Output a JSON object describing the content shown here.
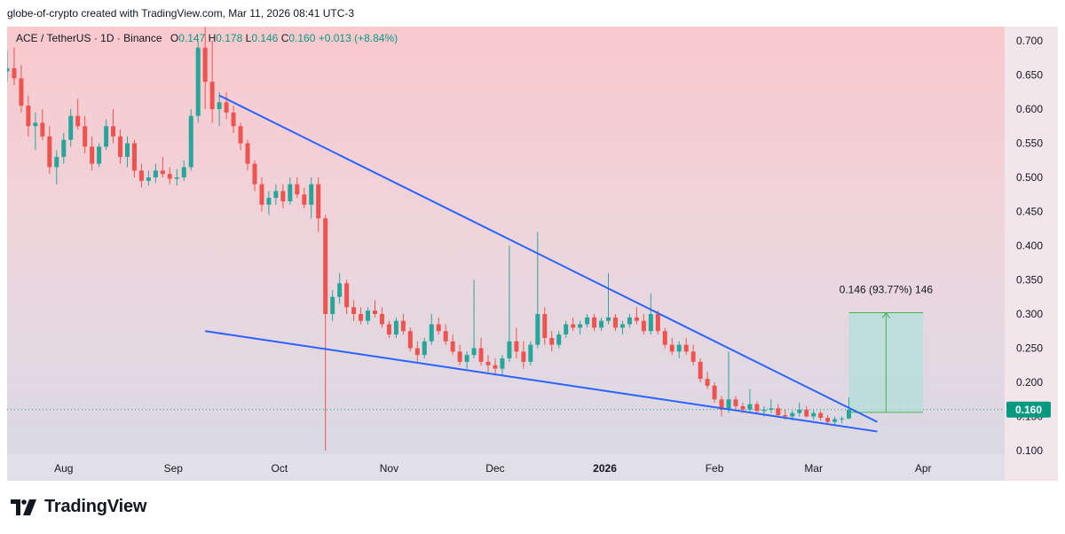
{
  "header": {
    "text": "globe-of-crypto created with TradingView.com, Mar 11, 2026 08:41 UTC-3"
  },
  "legend": {
    "symbol": "ACE / TetherUS · 1D · Binance",
    "o_key": "O",
    "o_val": "0.147",
    "h_key": "H",
    "h_val": "0.178",
    "l_key": "L",
    "l_val": "0.146",
    "c_key": "C",
    "c_val": "0.160",
    "change": "+0.013 (+8.84%)"
  },
  "brand": {
    "name": "TradingView",
    "logo_icon": "tradingview-logo-icon"
  },
  "colors": {
    "up": "#26a69a",
    "down": "#ef5350",
    "trendline": "#2962ff",
    "projection_fill": "#b2dfdb",
    "price_label": "#089981"
  },
  "chart_data": {
    "type": "candlestick",
    "y_axis": {
      "min": 0.1,
      "max": 0.7,
      "ticks": [
        0.7,
        0.65,
        0.6,
        0.55,
        0.5,
        0.45,
        0.4,
        0.35,
        0.3,
        0.25,
        0.2,
        0.15,
        0.1
      ],
      "tick_labels": [
        "0.700",
        "0.650",
        "0.600",
        "0.550",
        "0.500",
        "0.450",
        "0.400",
        "0.350",
        "0.300",
        "0.250",
        "0.200",
        "0.150",
        "0.100"
      ]
    },
    "x_axis": {
      "start": "2025-07-16",
      "end": "2026-04-15",
      "labels": [
        {
          "date": "2025-08-01",
          "label": "Aug"
        },
        {
          "date": "2025-09-01",
          "label": "Sep"
        },
        {
          "date": "2025-10-01",
          "label": "Oct"
        },
        {
          "date": "2025-11-01",
          "label": "Nov"
        },
        {
          "date": "2025-12-01",
          "label": "Dec"
        },
        {
          "date": "2026-01-01",
          "label": "2026"
        },
        {
          "date": "2026-02-01",
          "label": "Feb"
        },
        {
          "date": "2026-03-01",
          "label": "Mar"
        },
        {
          "date": "2026-04-01",
          "label": "Apr"
        }
      ]
    },
    "candles": [
      [
        "2025-07-16",
        0.655,
        0.685,
        0.64,
        0.66
      ],
      [
        "2025-07-18",
        0.66,
        0.69,
        0.635,
        0.645
      ],
      [
        "2025-07-20",
        0.645,
        0.665,
        0.595,
        0.605
      ],
      [
        "2025-07-22",
        0.605,
        0.62,
        0.56,
        0.575
      ],
      [
        "2025-07-24",
        0.575,
        0.595,
        0.54,
        0.58
      ],
      [
        "2025-07-26",
        0.58,
        0.6,
        0.555,
        0.56
      ],
      [
        "2025-07-28",
        0.56,
        0.575,
        0.505,
        0.515
      ],
      [
        "2025-07-30",
        0.515,
        0.54,
        0.49,
        0.53
      ],
      [
        "2025-08-01",
        0.53,
        0.565,
        0.52,
        0.555
      ],
      [
        "2025-08-03",
        0.555,
        0.6,
        0.545,
        0.59
      ],
      [
        "2025-08-05",
        0.59,
        0.615,
        0.57,
        0.575
      ],
      [
        "2025-08-07",
        0.575,
        0.59,
        0.535,
        0.545
      ],
      [
        "2025-08-09",
        0.545,
        0.56,
        0.51,
        0.52
      ],
      [
        "2025-08-11",
        0.52,
        0.55,
        0.515,
        0.545
      ],
      [
        "2025-08-13",
        0.545,
        0.585,
        0.54,
        0.575
      ],
      [
        "2025-08-15",
        0.575,
        0.6,
        0.55,
        0.56
      ],
      [
        "2025-08-17",
        0.56,
        0.57,
        0.52,
        0.53
      ],
      [
        "2025-08-19",
        0.53,
        0.56,
        0.515,
        0.55
      ],
      [
        "2025-08-21",
        0.55,
        0.555,
        0.5,
        0.51
      ],
      [
        "2025-08-23",
        0.51,
        0.52,
        0.485,
        0.495
      ],
      [
        "2025-08-25",
        0.495,
        0.51,
        0.488,
        0.5
      ],
      [
        "2025-08-27",
        0.5,
        0.52,
        0.492,
        0.51
      ],
      [
        "2025-08-29",
        0.51,
        0.53,
        0.5,
        0.505
      ],
      [
        "2025-08-31",
        0.505,
        0.515,
        0.49,
        0.498
      ],
      [
        "2025-09-02",
        0.498,
        0.512,
        0.488,
        0.5
      ],
      [
        "2025-09-04",
        0.5,
        0.525,
        0.495,
        0.515
      ],
      [
        "2025-09-06",
        0.515,
        0.6,
        0.51,
        0.59
      ],
      [
        "2025-09-08",
        0.59,
        0.7,
        0.58,
        0.69
      ],
      [
        "2025-09-10",
        0.69,
        0.72,
        0.6,
        0.64
      ],
      [
        "2025-09-12",
        0.64,
        0.7,
        0.58,
        0.6
      ],
      [
        "2025-09-14",
        0.6,
        0.625,
        0.575,
        0.61
      ],
      [
        "2025-09-16",
        0.61,
        0.625,
        0.585,
        0.595
      ],
      [
        "2025-09-18",
        0.595,
        0.605,
        0.565,
        0.575
      ],
      [
        "2025-09-20",
        0.575,
        0.58,
        0.54,
        0.55
      ],
      [
        "2025-09-22",
        0.55,
        0.555,
        0.51,
        0.52
      ],
      [
        "2025-09-24",
        0.52,
        0.525,
        0.48,
        0.49
      ],
      [
        "2025-09-26",
        0.49,
        0.5,
        0.45,
        0.46
      ],
      [
        "2025-09-28",
        0.46,
        0.48,
        0.445,
        0.47
      ],
      [
        "2025-09-30",
        0.47,
        0.49,
        0.46,
        0.48
      ],
      [
        "2025-10-02",
        0.48,
        0.49,
        0.455,
        0.465
      ],
      [
        "2025-10-04",
        0.465,
        0.5,
        0.46,
        0.49
      ],
      [
        "2025-10-06",
        0.49,
        0.5,
        0.47,
        0.475
      ],
      [
        "2025-10-08",
        0.475,
        0.485,
        0.455,
        0.46
      ],
      [
        "2025-10-10",
        0.46,
        0.5,
        0.44,
        0.49
      ],
      [
        "2025-10-12",
        0.49,
        0.5,
        0.42,
        0.44
      ],
      [
        "2025-10-14",
        0.44,
        0.445,
        0.1,
        0.3
      ],
      [
        "2025-10-16",
        0.3,
        0.335,
        0.29,
        0.325
      ],
      [
        "2025-10-18",
        0.325,
        0.36,
        0.315,
        0.345
      ],
      [
        "2025-10-20",
        0.345,
        0.35,
        0.3,
        0.31
      ],
      [
        "2025-10-22",
        0.31,
        0.32,
        0.29,
        0.3
      ],
      [
        "2025-10-24",
        0.3,
        0.31,
        0.285,
        0.29
      ],
      [
        "2025-10-26",
        0.29,
        0.31,
        0.285,
        0.305
      ],
      [
        "2025-10-28",
        0.305,
        0.32,
        0.295,
        0.3
      ],
      [
        "2025-10-30",
        0.3,
        0.31,
        0.28,
        0.285
      ],
      [
        "2025-11-01",
        0.285,
        0.29,
        0.265,
        0.27
      ],
      [
        "2025-11-03",
        0.27,
        0.295,
        0.265,
        0.29
      ],
      [
        "2025-11-05",
        0.29,
        0.3,
        0.27,
        0.275
      ],
      [
        "2025-11-07",
        0.275,
        0.28,
        0.245,
        0.25
      ],
      [
        "2025-11-09",
        0.25,
        0.26,
        0.23,
        0.24
      ],
      [
        "2025-11-11",
        0.24,
        0.265,
        0.235,
        0.26
      ],
      [
        "2025-11-13",
        0.26,
        0.3,
        0.255,
        0.285
      ],
      [
        "2025-11-15",
        0.285,
        0.295,
        0.27,
        0.275
      ],
      [
        "2025-11-17",
        0.275,
        0.285,
        0.255,
        0.26
      ],
      [
        "2025-11-19",
        0.26,
        0.27,
        0.24,
        0.245
      ],
      [
        "2025-11-21",
        0.245,
        0.255,
        0.225,
        0.23
      ],
      [
        "2025-11-23",
        0.23,
        0.245,
        0.22,
        0.24
      ],
      [
        "2025-11-25",
        0.24,
        0.35,
        0.235,
        0.25
      ],
      [
        "2025-11-27",
        0.25,
        0.265,
        0.225,
        0.23
      ],
      [
        "2025-11-29",
        0.23,
        0.24,
        0.215,
        0.225
      ],
      [
        "2025-12-01",
        0.225,
        0.235,
        0.21,
        0.22
      ],
      [
        "2025-12-03",
        0.22,
        0.24,
        0.21,
        0.235
      ],
      [
        "2025-12-05",
        0.235,
        0.4,
        0.23,
        0.26
      ],
      [
        "2025-12-07",
        0.26,
        0.28,
        0.235,
        0.245
      ],
      [
        "2025-12-09",
        0.245,
        0.26,
        0.22,
        0.23
      ],
      [
        "2025-12-11",
        0.23,
        0.26,
        0.225,
        0.255
      ],
      [
        "2025-12-13",
        0.255,
        0.42,
        0.25,
        0.3
      ],
      [
        "2025-12-15",
        0.3,
        0.31,
        0.255,
        0.265
      ],
      [
        "2025-12-17",
        0.265,
        0.275,
        0.245,
        0.255
      ],
      [
        "2025-12-19",
        0.255,
        0.275,
        0.25,
        0.27
      ],
      [
        "2025-12-21",
        0.27,
        0.29,
        0.265,
        0.285
      ],
      [
        "2025-12-23",
        0.285,
        0.295,
        0.275,
        0.28
      ],
      [
        "2025-12-25",
        0.28,
        0.29,
        0.27,
        0.285
      ],
      [
        "2025-12-27",
        0.285,
        0.3,
        0.28,
        0.295
      ],
      [
        "2025-12-29",
        0.295,
        0.3,
        0.275,
        0.28
      ],
      [
        "2025-12-31",
        0.28,
        0.295,
        0.275,
        0.29
      ],
      [
        "2026-01-02",
        0.29,
        0.36,
        0.285,
        0.295
      ],
      [
        "2026-01-04",
        0.295,
        0.3,
        0.275,
        0.28
      ],
      [
        "2026-01-06",
        0.28,
        0.29,
        0.27,
        0.285
      ],
      [
        "2026-01-08",
        0.285,
        0.3,
        0.28,
        0.295
      ],
      [
        "2026-01-10",
        0.295,
        0.31,
        0.285,
        0.29
      ],
      [
        "2026-01-12",
        0.29,
        0.3,
        0.27,
        0.275
      ],
      [
        "2026-01-14",
        0.275,
        0.33,
        0.27,
        0.3
      ],
      [
        "2026-01-16",
        0.3,
        0.305,
        0.27,
        0.275
      ],
      [
        "2026-01-18",
        0.275,
        0.28,
        0.25,
        0.255
      ],
      [
        "2026-01-20",
        0.255,
        0.265,
        0.24,
        0.245
      ],
      [
        "2026-01-22",
        0.245,
        0.26,
        0.235,
        0.255
      ],
      [
        "2026-01-24",
        0.255,
        0.265,
        0.24,
        0.245
      ],
      [
        "2026-01-26",
        0.245,
        0.255,
        0.225,
        0.23
      ],
      [
        "2026-01-28",
        0.23,
        0.235,
        0.2,
        0.205
      ],
      [
        "2026-01-30",
        0.205,
        0.215,
        0.19,
        0.195
      ],
      [
        "2026-02-01",
        0.195,
        0.2,
        0.17,
        0.175
      ],
      [
        "2026-02-03",
        0.175,
        0.18,
        0.15,
        0.16
      ],
      [
        "2026-02-05",
        0.16,
        0.245,
        0.155,
        0.175
      ],
      [
        "2026-02-07",
        0.175,
        0.18,
        0.16,
        0.165
      ],
      [
        "2026-02-09",
        0.165,
        0.17,
        0.155,
        0.16
      ],
      [
        "2026-02-11",
        0.16,
        0.19,
        0.155,
        0.168
      ],
      [
        "2026-02-13",
        0.168,
        0.172,
        0.155,
        0.158
      ],
      [
        "2026-02-15",
        0.158,
        0.165,
        0.15,
        0.16
      ],
      [
        "2026-02-17",
        0.16,
        0.175,
        0.155,
        0.162
      ],
      [
        "2026-02-19",
        0.162,
        0.168,
        0.148,
        0.152
      ],
      [
        "2026-02-21",
        0.152,
        0.16,
        0.145,
        0.15
      ],
      [
        "2026-02-23",
        0.15,
        0.158,
        0.144,
        0.155
      ],
      [
        "2026-02-25",
        0.155,
        0.17,
        0.15,
        0.16
      ],
      [
        "2026-02-27",
        0.16,
        0.165,
        0.148,
        0.15
      ],
      [
        "2026-03-01",
        0.15,
        0.16,
        0.145,
        0.155
      ],
      [
        "2026-03-03",
        0.155,
        0.158,
        0.144,
        0.148
      ],
      [
        "2026-03-05",
        0.148,
        0.152,
        0.14,
        0.142
      ],
      [
        "2026-03-07",
        0.142,
        0.15,
        0.138,
        0.146
      ],
      [
        "2026-03-09",
        0.146,
        0.15,
        0.14,
        0.147
      ],
      [
        "2026-03-11",
        0.147,
        0.178,
        0.146,
        0.16
      ]
    ],
    "trendlines": [
      {
        "from": [
          "2025-09-14",
          0.62
        ],
        "to": [
          "2026-03-19",
          0.142
        ]
      },
      {
        "from": [
          "2025-09-10",
          0.275
        ],
        "to": [
          "2026-03-19",
          0.128
        ]
      }
    ],
    "projection": {
      "from_date": "2026-03-11",
      "to_date": "2026-04-01",
      "low": 0.156,
      "high": 0.302,
      "label": "0.146 (93.77%) 146"
    },
    "last_price": {
      "value": 0.16,
      "label": "0.160"
    }
  }
}
